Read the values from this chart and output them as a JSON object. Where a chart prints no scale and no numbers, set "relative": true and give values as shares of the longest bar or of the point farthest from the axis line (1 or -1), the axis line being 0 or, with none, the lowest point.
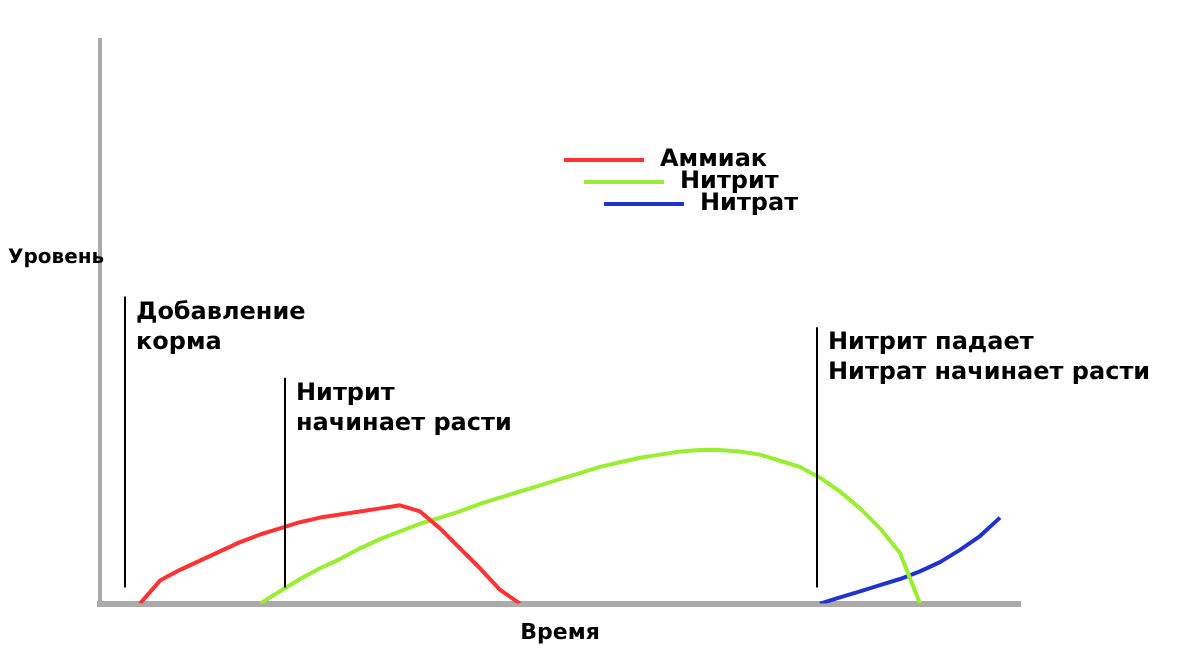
{
  "chart_data": {
    "type": "line",
    "relative": true,
    "xlabel": "Время",
    "tick_labels": false,
    "grid": false,
    "legend": "top",
    "marker": "none",
    "line_style": "solid",
    "categories": [
      null,
      null,
      null,
      null,
      null,
      null,
      null,
      null,
      null,
      null,
      null,
      null,
      null,
      null,
      null,
      null,
      null,
      null,
      null,
      null,
      null,
      null,
      null,
      null,
      null,
      null,
      null,
      null,
      null,
      null,
      null,
      null,
      null,
      null,
      null,
      null,
      null,
      null,
      null,
      null,
      null,
      null,
      null,
      null,
      null,
      null,
      null
    ],
    "series": [
      {
        "name": "Аммиак",
        "color": "#ff3333",
        "values": [
          null,
          null,
          0,
          0.15,
          0.22,
          0.28,
          0.34,
          0.4,
          0.45,
          0.49,
          0.53,
          0.56,
          0.58,
          0.6,
          0.62,
          0.64,
          0.6,
          0.49,
          0.36,
          0.23,
          0.09,
          0,
          null,
          null,
          null,
          null,
          null,
          null,
          null,
          null,
          null,
          null,
          null,
          null,
          null,
          null,
          null,
          null,
          null,
          null,
          null,
          null,
          null,
          null,
          null,
          null,
          null
        ]
      },
      {
        "name": "Нитрит",
        "color": "#99ee33",
        "values": [
          null,
          null,
          null,
          null,
          null,
          null,
          null,
          null,
          0,
          0.08,
          0.16,
          0.23,
          0.29,
          0.36,
          0.42,
          0.47,
          0.52,
          0.56,
          0.6,
          0.65,
          0.69,
          0.73,
          0.77,
          0.81,
          0.85,
          0.89,
          0.92,
          0.95,
          0.97,
          0.99,
          1,
          1,
          0.99,
          0.97,
          0.93,
          0.89,
          0.82,
          0.73,
          0.62,
          0.49,
          0.33,
          0,
          null,
          null,
          null,
          null,
          null
        ]
      },
      {
        "name": "Нитрат",
        "color": "#2233cc",
        "values": [
          null,
          null,
          null,
          null,
          null,
          null,
          null,
          null,
          null,
          null,
          null,
          null,
          null,
          null,
          null,
          null,
          null,
          null,
          null,
          null,
          null,
          null,
          null,
          null,
          null,
          null,
          null,
          null,
          null,
          null,
          null,
          null,
          null,
          null,
          null,
          null,
          0,
          0.04,
          0.08,
          0.12,
          0.16,
          0.21,
          0.27,
          0.35,
          0.44,
          0.56,
          null
        ]
      }
    ],
    "annotations": [
      "Добавление\nкорма",
      "Нитрит\nначинает расти",
      "Нитрит падает\nНитрат начинает расти",
      "Уровень"
    ]
  }
}
